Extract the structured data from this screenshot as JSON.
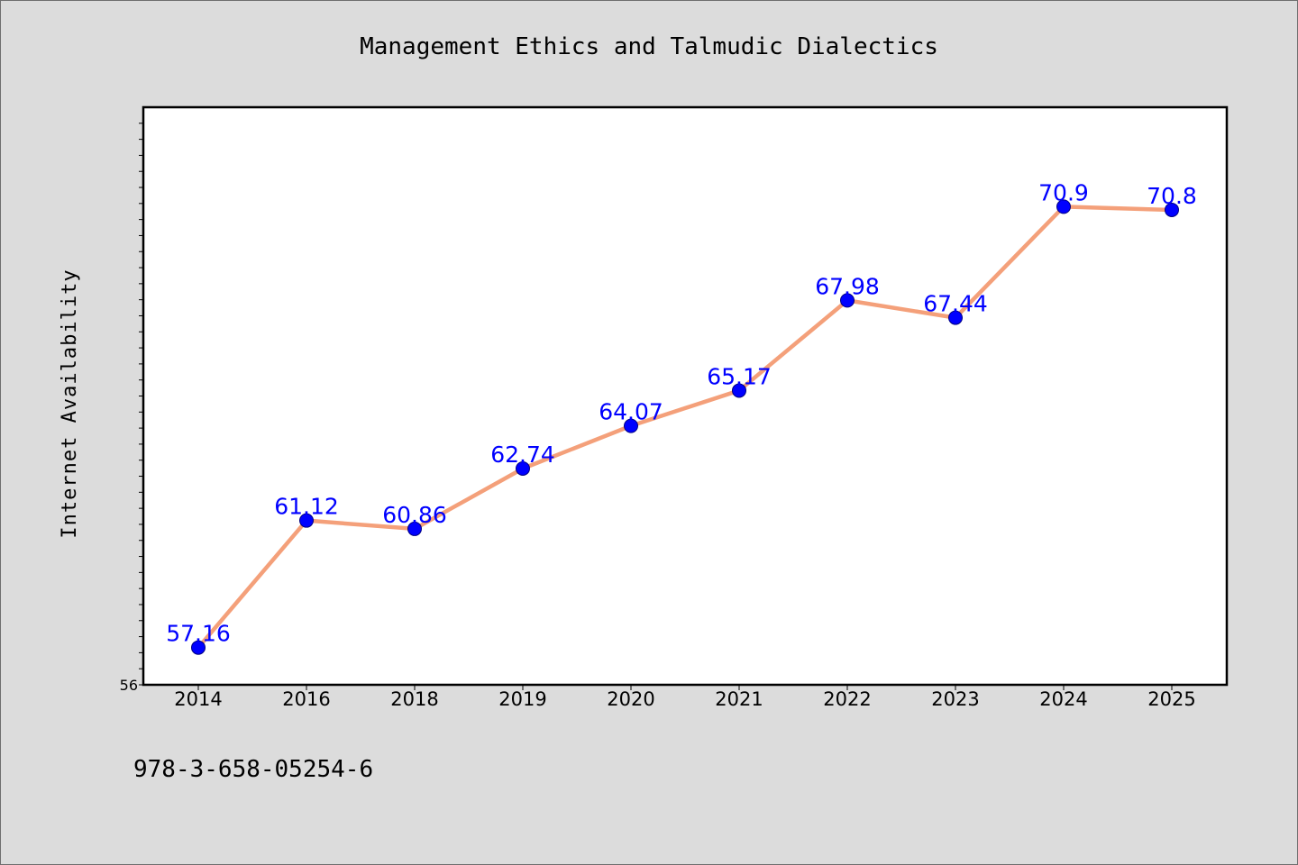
{
  "chart_data": {
    "type": "line",
    "title": "Management Ethics and Talmudic Dialectics",
    "xlabel": "",
    "ylabel": "Internet Availability",
    "categories": [
      "2014",
      "2016",
      "2018",
      "2019",
      "2020",
      "2021",
      "2022",
      "2023",
      "2024",
      "2025"
    ],
    "series": [
      {
        "values": [
          57.16,
          61.12,
          60.86,
          62.74,
          64.07,
          65.17,
          67.98,
          67.44,
          70.9,
          70.8
        ],
        "labels": [
          "57.16",
          "61.12",
          "60.86",
          "62.74",
          "64.07",
          "65.17",
          "67.98",
          "67.44",
          "70.9",
          "70.8"
        ]
      }
    ],
    "ylim": [
      56,
      74
    ],
    "ytick_labels": [
      "56"
    ],
    "grid": false,
    "colors": {
      "line": "#f4a07a",
      "marker": "#0000ff",
      "marker_edge": "#000080",
      "data_label": "#0000ff",
      "plot_background": "#ffffff",
      "figure_background": "#dcdcdc"
    }
  },
  "footer": {
    "isbn": "978-3-658-05254-6"
  }
}
